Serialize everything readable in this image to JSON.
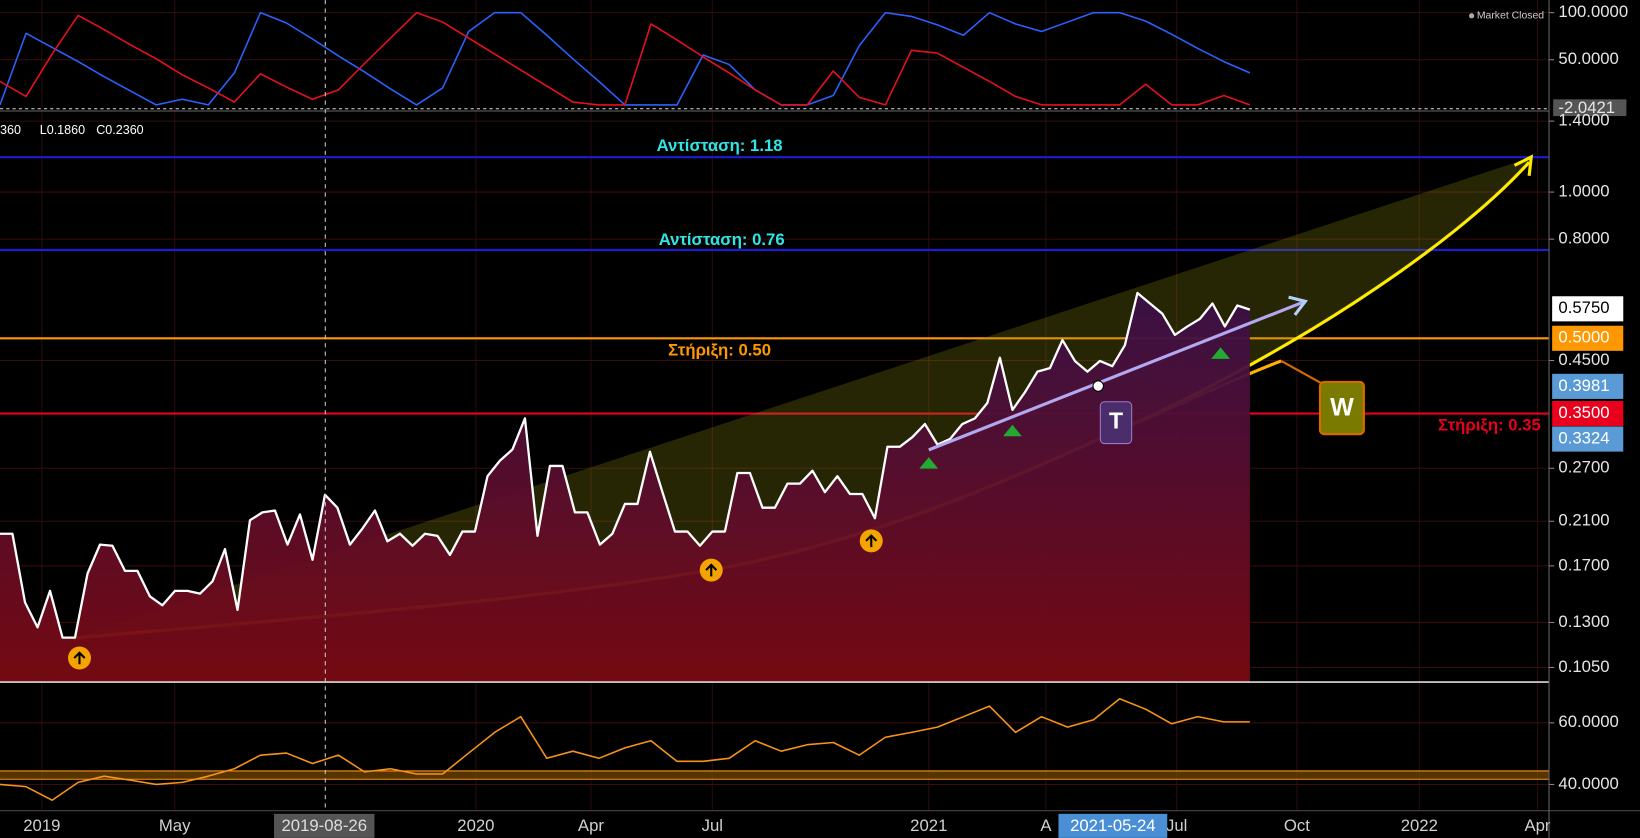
{
  "legend": [
    "360",
    "L0.1860",
    "C0.2360"
  ],
  "status": "Market Closed",
  "time_axis": {
    "labels": [
      "2019",
      "May",
      "2020",
      "Apr",
      "Jul",
      "2021",
      "A",
      "Jul",
      "Oct",
      "2022",
      "Apr"
    ],
    "crosshair": [
      "2019-08-26",
      "2021-05-24"
    ]
  },
  "annotations": [
    "T",
    "W"
  ],
  "chart_data": [
    {
      "type": "line",
      "series": [
        {
          "color": "#2962ff",
          "values": [
            2,
            78,
            63,
            48,
            32,
            17,
            2,
            8,
            2,
            36,
            100,
            89,
            72,
            54,
            37,
            19,
            2,
            20,
            80,
            100,
            100,
            76,
            51,
            27,
            2,
            2,
            2,
            55,
            45,
            18,
            2,
            2,
            12,
            65,
            100,
            96,
            87,
            76,
            100,
            88,
            80,
            90,
            100,
            100,
            91,
            77,
            62,
            48,
            36
          ]
        },
        {
          "color": "#e8101e",
          "values": [
            27,
            11,
            56,
            97,
            82,
            66,
            51,
            34,
            20,
            5,
            35,
            21,
            8,
            18,
            46,
            73,
            100,
            90,
            73,
            56,
            39,
            22,
            5,
            2,
            2,
            88,
            71,
            53,
            36,
            18,
            2,
            2,
            38,
            10,
            2,
            60,
            57,
            42,
            27,
            11,
            2,
            2,
            2,
            2,
            24,
            2,
            2,
            12,
            2
          ]
        }
      ],
      "ylim": [
        -4.4,
        113.3
      ],
      "yticks": [
        {
          "value": 100,
          "label": "100.0000"
        },
        {
          "value": 50,
          "label": "50.0000"
        }
      ],
      "last_value": {
        "value": -2.0421,
        "label": "-2.0421"
      }
    },
    {
      "type": "line",
      "log_scale": true,
      "color": "#ffffff",
      "values": [
        0.198,
        0.198,
        0.143,
        0.127,
        0.151,
        0.121,
        0.121,
        0.164,
        0.188,
        0.187,
        0.166,
        0.166,
        0.147,
        0.141,
        0.151,
        0.151,
        0.149,
        0.158,
        0.184,
        0.138,
        0.211,
        0.219,
        0.221,
        0.188,
        0.217,
        0.175,
        0.238,
        0.224,
        0.188,
        0.203,
        0.221,
        0.191,
        0.198,
        0.187,
        0.198,
        0.196,
        0.179,
        0.2,
        0.2,
        0.26,
        0.28,
        0.295,
        0.342,
        0.196,
        0.273,
        0.273,
        0.219,
        0.219,
        0.188,
        0.198,
        0.228,
        0.228,
        0.292,
        0.241,
        0.2,
        0.2,
        0.187,
        0.2,
        0.2,
        0.264,
        0.264,
        0.224,
        0.224,
        0.251,
        0.251,
        0.267,
        0.241,
        0.26,
        0.239,
        0.239,
        0.213,
        0.299,
        0.299,
        0.313,
        0.333,
        0.302,
        0.31,
        0.333,
        0.342,
        0.368,
        0.456,
        0.356,
        0.387,
        0.427,
        0.434,
        0.496,
        0.449,
        0.427,
        0.449,
        0.438,
        0.484,
        0.62,
        0.59,
        0.562,
        0.508,
        0.529,
        0.548,
        0.59,
        0.529,
        0.584,
        0.573
      ],
      "ylim": [
        0.098,
        1.44
      ],
      "yticks": [
        {
          "value": 1.4,
          "label": "1.4000"
        },
        {
          "value": 1.0,
          "label": "1.0000"
        },
        {
          "value": 0.8,
          "label": "0.8000"
        },
        {
          "value": 0.45,
          "label": "0.4500"
        },
        {
          "value": 0.27,
          "label": "0.2700"
        },
        {
          "value": 0.21,
          "label": "0.2100"
        },
        {
          "value": 0.17,
          "label": "0.1700"
        },
        {
          "value": 0.13,
          "label": "0.1300"
        },
        {
          "value": 0.105,
          "label": "0.1050"
        }
      ],
      "levels": [
        {
          "label": "Αντίσταση: 1.18",
          "value": 1.18,
          "color": "#1c1cd6",
          "text_color": "#2ee6e6"
        },
        {
          "label": "Αντίσταση: 0.76",
          "value": 0.76,
          "color": "#1c1cd6",
          "text_color": "#2ee6e6"
        },
        {
          "label": "Στήριξη: 0.50",
          "value": 0.5,
          "color": "#ff9800",
          "text_color": "#ff9800"
        },
        {
          "label": "Στήριξη: 0.35",
          "value": 0.35,
          "color": "#e8001c",
          "text_color": "#e8001c"
        }
      ],
      "price_labels": [
        {
          "value": 0.575,
          "label": "0.5750",
          "color": "#ffffff",
          "text_color": "#000000"
        },
        {
          "value": 0.5,
          "label": "0.5000",
          "color": "#ff9800",
          "text_color": "#ffffff"
        },
        {
          "value": 0.3981,
          "label": "0.3981",
          "color": "#5b9bd5",
          "text_color": "#ffffff"
        },
        {
          "value": 0.35,
          "label": "0.3500",
          "color": "#e8001c",
          "text_color": "#ffffff"
        },
        {
          "value": 0.3324,
          "label": "0.3324",
          "color": "#5b9bd5",
          "text_color": "#ffffff"
        }
      ]
    },
    {
      "type": "line",
      "color": "#f7931a",
      "values": [
        40.0,
        39.3,
        34.9,
        40.7,
        42.7,
        41.4,
        40.0,
        40.7,
        42.7,
        45.1,
        49.5,
        50.2,
        46.8,
        49.5,
        44.1,
        45.1,
        43.4,
        43.4,
        50.2,
        56.9,
        62.0,
        48.5,
        50.8,
        48.5,
        51.9,
        54.2,
        47.5,
        47.5,
        48.5,
        54.2,
        50.8,
        52.9,
        53.6,
        49.5,
        55.3,
        56.9,
        58.6,
        62.0,
        65.4,
        56.9,
        62.0,
        58.6,
        61.0,
        67.8,
        64.4,
        59.7,
        62.0,
        60.3,
        60.3
      ],
      "ylim": [
        31.5,
        72.2
      ],
      "yticks": [
        {
          "value": 60,
          "label": "60.0000"
        },
        {
          "value": 40,
          "label": "40.0000"
        }
      ],
      "band": [
        41.7,
        44.4
      ]
    }
  ]
}
